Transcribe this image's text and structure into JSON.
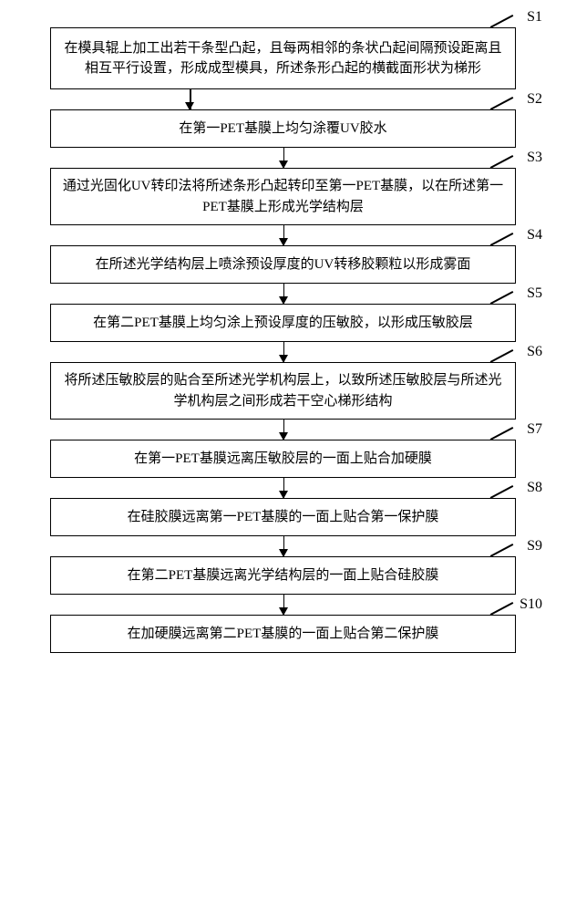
{
  "flowchart": {
    "type": "flowchart",
    "direction": "top-to-bottom",
    "background_color": "#ffffff",
    "border_color": "#000000",
    "border_width": 1.5,
    "text_color": "#000000",
    "font_family": "SimSun",
    "font_size": 15,
    "label_font_size": 16,
    "arrow_color": "#000000",
    "box_width_ratio": 0.88,
    "label_position": "top-right",
    "steps": [
      {
        "id": "S1",
        "text": "在模具辊上加工出若干条型凸起，且每两相邻的条状凸起间隔预设距离且相互平行设置，形成成型模具，所述条形凸起的横截面形状为梯形",
        "lines": 3,
        "center_arrow": false
      },
      {
        "id": "S2",
        "text": "在第一PET基膜上均匀涂覆UV胶水",
        "lines": 1,
        "center_arrow": false
      },
      {
        "id": "S3",
        "text": "通过光固化UV转印法将所述条形凸起转印至第一PET基膜，以在所述第一PET基膜上形成光学结构层",
        "lines": 2,
        "center_arrow": true
      },
      {
        "id": "S4",
        "text": "在所述光学结构层上喷涂预设厚度的UV转移胶颗粒以形成雾面",
        "lines": 1,
        "center_arrow": true
      },
      {
        "id": "S5",
        "text": "在第二PET基膜上均匀涂上预设厚度的压敏胶，以形成压敏胶层",
        "lines": 1,
        "center_arrow": true
      },
      {
        "id": "S6",
        "text": "将所述压敏胶层的贴合至所述光学机构层上，以致所述压敏胶层与所述光学机构层之间形成若干空心梯形结构",
        "lines": 2,
        "center_arrow": true
      },
      {
        "id": "S7",
        "text": "在第一PET基膜远离压敏胶层的一面上贴合加硬膜",
        "lines": 1,
        "center_arrow": true
      },
      {
        "id": "S8",
        "text": "在硅胶膜远离第一PET基膜的一面上贴合第一保护膜",
        "lines": 1,
        "center_arrow": true
      },
      {
        "id": "S9",
        "text": "在第二PET基膜远离光学结构层的一面上贴合硅胶膜",
        "lines": 1,
        "center_arrow": true
      },
      {
        "id": "S10",
        "text": "在加硬膜远离第二PET基膜的一面上贴合第二保护膜",
        "lines": 1,
        "center_arrow": true
      }
    ]
  }
}
